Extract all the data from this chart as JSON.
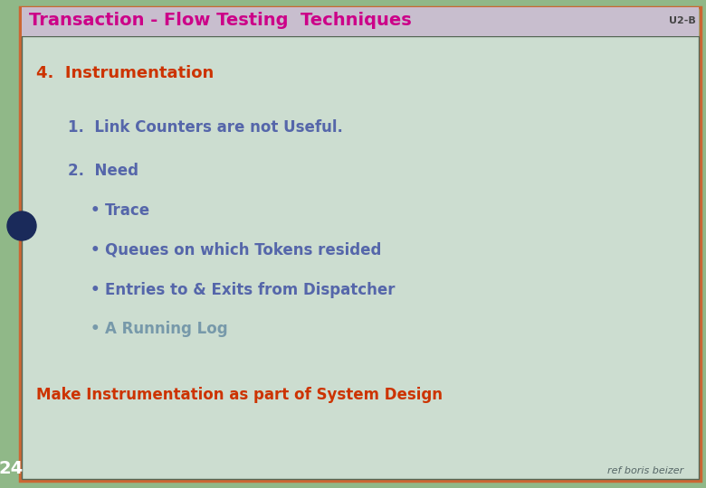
{
  "title": "Transaction - Flow Testing  Techniques",
  "title_color": "#cc0088",
  "title_bg_color": "#c8bece",
  "corner_label": "U2-B",
  "corner_label_color": "#444444",
  "outer_bg_color": "#90b888",
  "inner_bg_color": "#ccddd0",
  "outer_border_color": "#cc6633",
  "inner_border_color": "#556655",
  "slide_number": "24",
  "slide_number_color": "#ffffff",
  "left_strip_color": "#88aa88",
  "circle_color": "#1a2a5a",
  "footer_text": "ref boris beizer",
  "footer_color": "#556666",
  "heading": "4.  Instrumentation",
  "heading_color": "#cc3300",
  "item1": "1.  Link Counters are not Useful.",
  "item1_color": "#5566aa",
  "item2": "2.  Need",
  "item2_color": "#5566aa",
  "bullets": [
    "Trace",
    "Queues on which Tokens resided",
    "Entries to & Exits from Dispatcher",
    "A Running Log"
  ],
  "bullet_colors": [
    "#5566aa",
    "#5566aa",
    "#5566aa",
    "#7799aa"
  ],
  "conclusion": "Make Instrumentation as part of System Design",
  "conclusion_color": "#cc3300"
}
